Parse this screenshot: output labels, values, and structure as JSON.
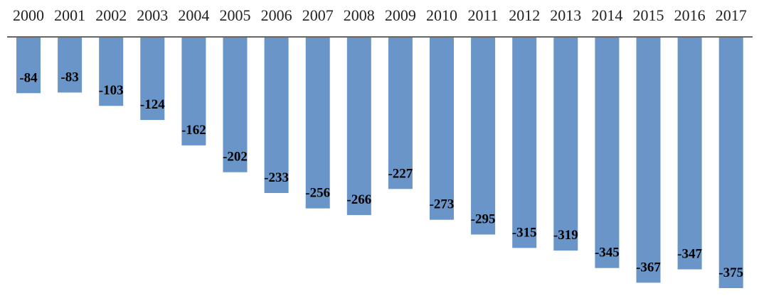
{
  "chart_data": {
    "type": "bar",
    "categories": [
      "2000",
      "2001",
      "2002",
      "2003",
      "2004",
      "2005",
      "2006",
      "2007",
      "2008",
      "2009",
      "2010",
      "2011",
      "2012",
      "2013",
      "2014",
      "2015",
      "2016",
      "2017"
    ],
    "series": [
      {
        "values": [
          -84,
          -83,
          -103,
          -124,
          -162,
          -202,
          -233,
          -256,
          -266,
          -227,
          -273,
          -295,
          -315,
          -319,
          -345,
          -367,
          -347,
          -375
        ]
      }
    ],
    "title": "",
    "xlabel": "",
    "ylabel": "",
    "ylim": [
      -375,
      0
    ],
    "x_axis_position": "top",
    "data_labels": true,
    "grid": false,
    "legend": "none",
    "colors": {
      "bar": "#6a95c8",
      "axis": "#666666",
      "text": "#222222"
    }
  }
}
